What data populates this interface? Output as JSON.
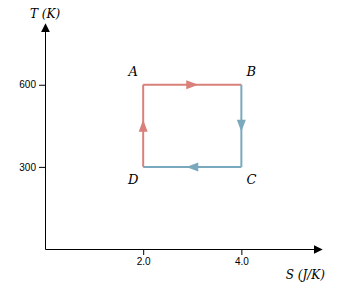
{
  "chart_data": {
    "type": "line",
    "series": [
      {
        "x": [
          2.0,
          4.0
        ],
        "values": [
          600,
          600
        ],
        "color": "#d9807a"
      },
      {
        "x": [
          4.0,
          4.0
        ],
        "values": [
          600,
          300
        ],
        "color": "#7aa8bd"
      },
      {
        "x": [
          4.0,
          2.0
        ],
        "values": [
          300,
          300
        ],
        "color": "#7aa8bd"
      },
      {
        "x": [
          2.0,
          2.0
        ],
        "values": [
          300,
          600
        ],
        "color": "#d9807a"
      }
    ],
    "annotations": [
      {
        "text": "A",
        "x": 2.0,
        "y": 600
      },
      {
        "text": "B",
        "x": 4.0,
        "y": 600
      },
      {
        "text": "C",
        "x": 4.0,
        "y": 300
      },
      {
        "text": "D",
        "x": 2.0,
        "y": 300
      }
    ],
    "xlabel": "S (J/K)",
    "ylabel": "T (K)",
    "xlim": [
      0,
      5.5
    ],
    "ylim": [
      0,
      800
    ],
    "xticks": [
      {
        "value": 2.0,
        "label": "2.0"
      },
      {
        "value": 4.0,
        "label": "4.0"
      }
    ],
    "yticks": [
      300,
      600
    ]
  }
}
